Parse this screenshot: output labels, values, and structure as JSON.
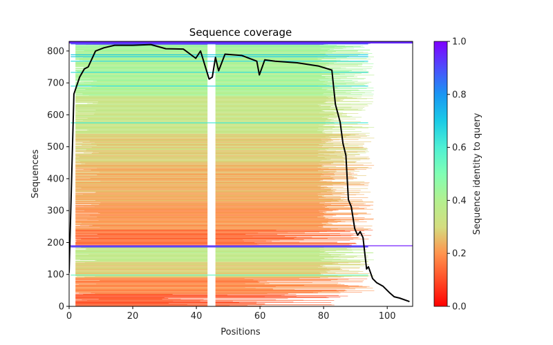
{
  "chart_data": {
    "type": "heatmap",
    "title": "Sequence coverage",
    "xlabel": "Positions",
    "ylabel": "Sequences",
    "xlim": [
      0,
      108
    ],
    "ylim": [
      0,
      830
    ],
    "xticks": [
      0,
      20,
      40,
      60,
      80,
      100
    ],
    "yticks": [
      0,
      100,
      200,
      300,
      400,
      500,
      600,
      700,
      800
    ],
    "grid": false,
    "colorbar": {
      "label": "Sequence identity to query",
      "colormap": "rainbow_r",
      "range": [
        0.0,
        1.0
      ],
      "ticks": [
        "0.0",
        "0.2",
        "0.4",
        "0.6",
        "0.8",
        "1.0"
      ],
      "placement": "right"
    },
    "heatmap_description": "Each horizontal line is an aligned sequence colored by its identity to the query; rows sorted by identity within two blocks (0-190 and 190-830). Most rows span positions ~2 to ~84, with gaps around positions 43-46 and 59-60.",
    "identity_bands": [
      {
        "rows": [
          0,
          40
        ],
        "identity": 0.12
      },
      {
        "rows": [
          40,
          90
        ],
        "identity": 0.18
      },
      {
        "rows": [
          90,
          140
        ],
        "identity": 0.28
      },
      {
        "rows": [
          140,
          185
        ],
        "identity": 0.36
      },
      {
        "rows": [
          185,
          190
        ],
        "identity": 0.75
      },
      {
        "rows": [
          190,
          240
        ],
        "identity": 0.15
      },
      {
        "rows": [
          240,
          330
        ],
        "identity": 0.2
      },
      {
        "rows": [
          330,
          450
        ],
        "identity": 0.24
      },
      {
        "rows": [
          450,
          540
        ],
        "identity": 0.28
      },
      {
        "rows": [
          540,
          660
        ],
        "identity": 0.34
      },
      {
        "rows": [
          660,
          820
        ],
        "identity": 0.42
      },
      {
        "rows": [
          820,
          830
        ],
        "identity": 0.95
      }
    ],
    "highlight_rows": [
      {
        "row": 575,
        "identity": 0.62
      },
      {
        "row": 690,
        "identity": 0.65
      },
      {
        "row": 733,
        "identity": 0.65
      },
      {
        "row": 768,
        "identity": 0.66
      },
      {
        "row": 782,
        "identity": 0.7
      },
      {
        "row": 788,
        "identity": 0.7
      },
      {
        "row": 822,
        "identity": 0.88
      },
      {
        "row": 188,
        "identity": 0.75
      },
      {
        "row": 186,
        "identity": 0.95
      },
      {
        "row": 98,
        "identity": 0.55
      }
    ],
    "series": [
      {
        "name": "coverage",
        "color": "#000000",
        "x": [
          0,
          1.5,
          3.3,
          4.8,
          6,
          8.3,
          10.9,
          14.3,
          20,
          25.7,
          30.4,
          35.9,
          39.8,
          41.3,
          44,
          45,
          46,
          47,
          49,
          54.3,
          59,
          59.8,
          61.5,
          64.8,
          71.7,
          78.3,
          82.6,
          83.7,
          85.2,
          86.1,
          87,
          87.8,
          88.7,
          89.8,
          90.7,
          91.5,
          92.4,
          93.5,
          94.1,
          95.4,
          96.7,
          98.7,
          100.7,
          102.2,
          103.9,
          107
        ],
        "y": [
          105,
          665,
          718,
          744,
          750,
          800,
          810,
          818,
          818,
          820,
          807,
          806,
          777,
          800,
          712,
          718,
          780,
          738,
          790,
          786,
          768,
          725,
          772,
          768,
          763,
          753,
          740,
          633,
          577,
          510,
          473,
          334,
          312,
          243,
          223,
          234,
          215,
          117,
          124,
          87,
          74,
          63,
          43,
          30,
          26,
          15
        ]
      }
    ]
  }
}
